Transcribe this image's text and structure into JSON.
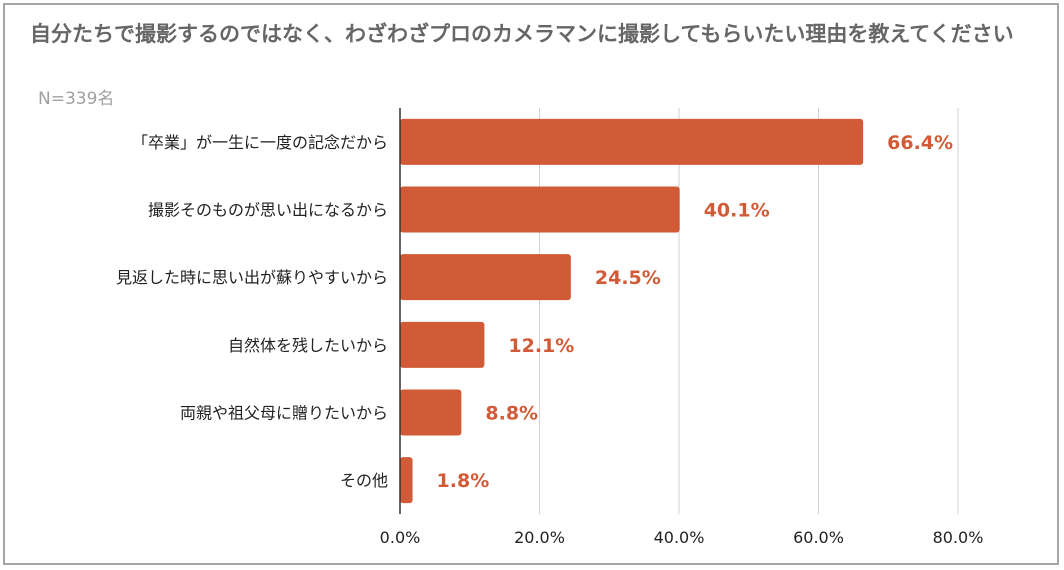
{
  "chart_data": {
    "type": "bar",
    "orientation": "horizontal",
    "title": "自分たちで撮影するのではなく、わざわざプロのカメラマンに撮影してもらいたい理由を教えてください",
    "subtitle": "N=339名",
    "categories": [
      "「卒業」が一生に一度の記念だから",
      "撮影そのものが思い出になるから",
      "見返した時に思い出が蘇りやすいから",
      "自然体を残したいから",
      "両親や祖父母に贈りたいから",
      "その他"
    ],
    "values": [
      66.4,
      40.1,
      24.5,
      12.1,
      8.8,
      1.8
    ],
    "data_labels": [
      "66.4%",
      "40.1%",
      "24.5%",
      "12.1%",
      "8.8%",
      "1.8%"
    ],
    "xlim": [
      0,
      80
    ],
    "xticks": [
      0,
      20,
      40,
      60,
      80
    ],
    "xtick_labels": [
      "0.0%",
      "20.0%",
      "40.0%",
      "60.0%",
      "80.0%"
    ],
    "xlabel": "",
    "ylabel": "",
    "grid": "vertical",
    "legend": "none",
    "bar_color": "#d15b36",
    "label_color": "#d15b36"
  }
}
